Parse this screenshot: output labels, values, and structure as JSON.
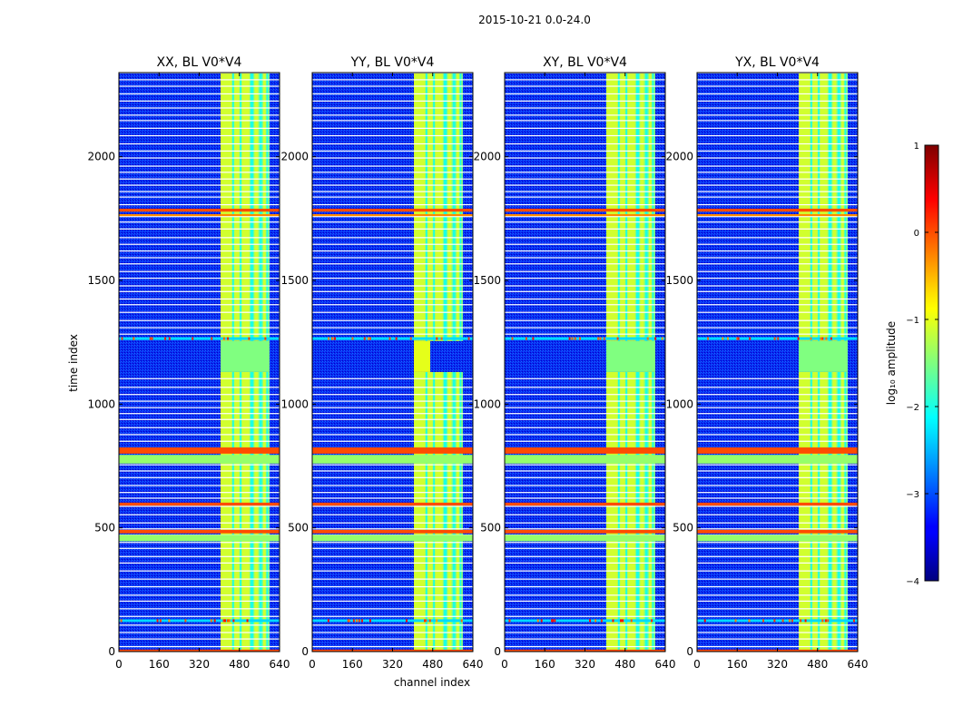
{
  "chart_data": {
    "type": "heatmap",
    "suptitle": "2015-10-21 0.0-24.0",
    "xlabel": "channel index",
    "ylabel": "time index",
    "xlim": [
      0,
      640
    ],
    "ylim": [
      0,
      2340
    ],
    "xticks": [
      0,
      160,
      320,
      480,
      640
    ],
    "yticks": [
      0,
      500,
      1000,
      1500,
      2000
    ],
    "panels": [
      {
        "title": "XX, BL V0*V4"
      },
      {
        "title": "YY, BL V0*V4"
      },
      {
        "title": "XY, BL V0*V4"
      },
      {
        "title": "YX, BL V0*V4"
      }
    ],
    "colorbar": {
      "label": "log₁₀ amplitude",
      "vmin": -4,
      "vmax": 1,
      "ticks": [
        1,
        0,
        -1,
        -2,
        -3,
        -4
      ],
      "tick_labels": [
        "1",
        "0",
        "−1",
        "−2",
        "−3",
        "−4"
      ]
    },
    "background_level": -3.4,
    "bright_channel_band": {
      "channels": [
        405,
        600
      ],
      "level": -1.5,
      "strong_strips": [
        [
          405,
          450
        ],
        [
          460,
          480
        ],
        [
          490,
          520
        ],
        [
          540,
          555
        ],
        [
          575,
          585
        ]
      ]
    },
    "bright_time_bands": [
      {
        "rows": [
          0,
          8
        ],
        "level": 0.0
      },
      {
        "rows": [
          446,
          472
        ],
        "level": -1.4
      },
      {
        "rows": [
          478,
          492
        ],
        "level": 0.0
      },
      {
        "rows": [
          590,
          602
        ],
        "level": 0.0
      },
      {
        "rows": [
          760,
          795
        ],
        "level": -1.4
      },
      {
        "rows": [
          800,
          825
        ],
        "level": 0.0
      },
      {
        "rows": [
          1760,
          1768
        ],
        "level": -0.3
      },
      {
        "rows": [
          1778,
          1790
        ],
        "level": 0.0
      }
    ],
    "quiet_time_band": {
      "rows": [
        1130,
        1255
      ],
      "level": -3.4
    }
  }
}
